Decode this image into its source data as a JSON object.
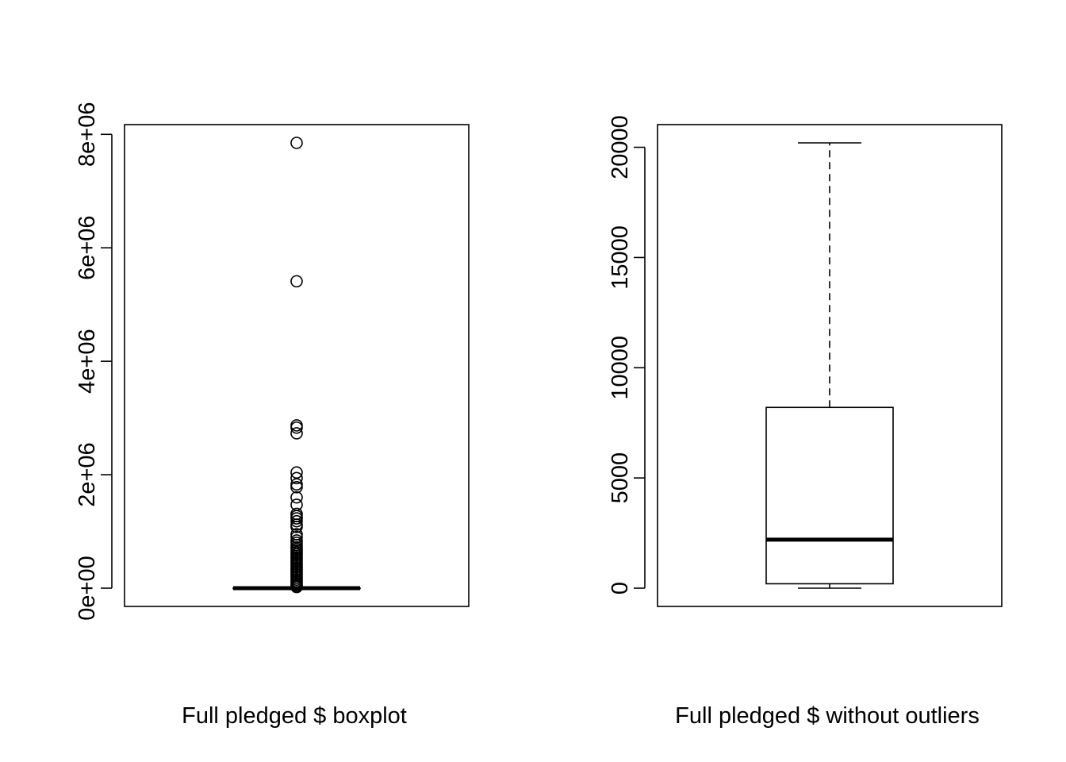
{
  "chart_data": [
    {
      "type": "boxplot",
      "title": "",
      "xlabel": "Full pledged $ boxplot",
      "ylabel": "",
      "ylim": [
        -150000,
        8100000
      ],
      "yticks": [
        0,
        2000000,
        4000000,
        6000000,
        8000000
      ],
      "ytick_labels": [
        "0e+00",
        "2e+06",
        "4e+06",
        "6e+06",
        "8e+06"
      ],
      "box": {
        "whisker_low": 0,
        "q1": 0,
        "median": 0,
        "q3": 0,
        "whisker_high": 0
      },
      "outliers": [
        7850000,
        5410000,
        2870000,
        2830000,
        2730000,
        2040000,
        1940000,
        1830000,
        1780000,
        1600000,
        1470000,
        1310000,
        1270000,
        1230000,
        1180000,
        1120000,
        1080000,
        950000,
        900000,
        840000,
        800000,
        760000,
        720000,
        690000,
        660000,
        630000,
        600000,
        570000,
        540000,
        510000,
        480000,
        450000,
        420000,
        390000,
        360000,
        330000,
        300000,
        270000,
        240000,
        210000,
        180000,
        150000,
        120000,
        90000,
        60000,
        40000,
        20000
      ],
      "grid": false
    },
    {
      "type": "boxplot",
      "title": "",
      "xlabel": "Full pledged $ without outliers",
      "ylabel": "",
      "ylim": [
        -800,
        20600
      ],
      "yticks": [
        0,
        5000,
        10000,
        15000,
        20000
      ],
      "ytick_labels": [
        "0",
        "5000",
        "10000",
        "15000",
        "20000"
      ],
      "box": {
        "whisker_low": 0,
        "q1": 200,
        "median": 2200,
        "q3": 8200,
        "whisker_high": 20200
      },
      "outliers": [],
      "grid": false
    }
  ]
}
